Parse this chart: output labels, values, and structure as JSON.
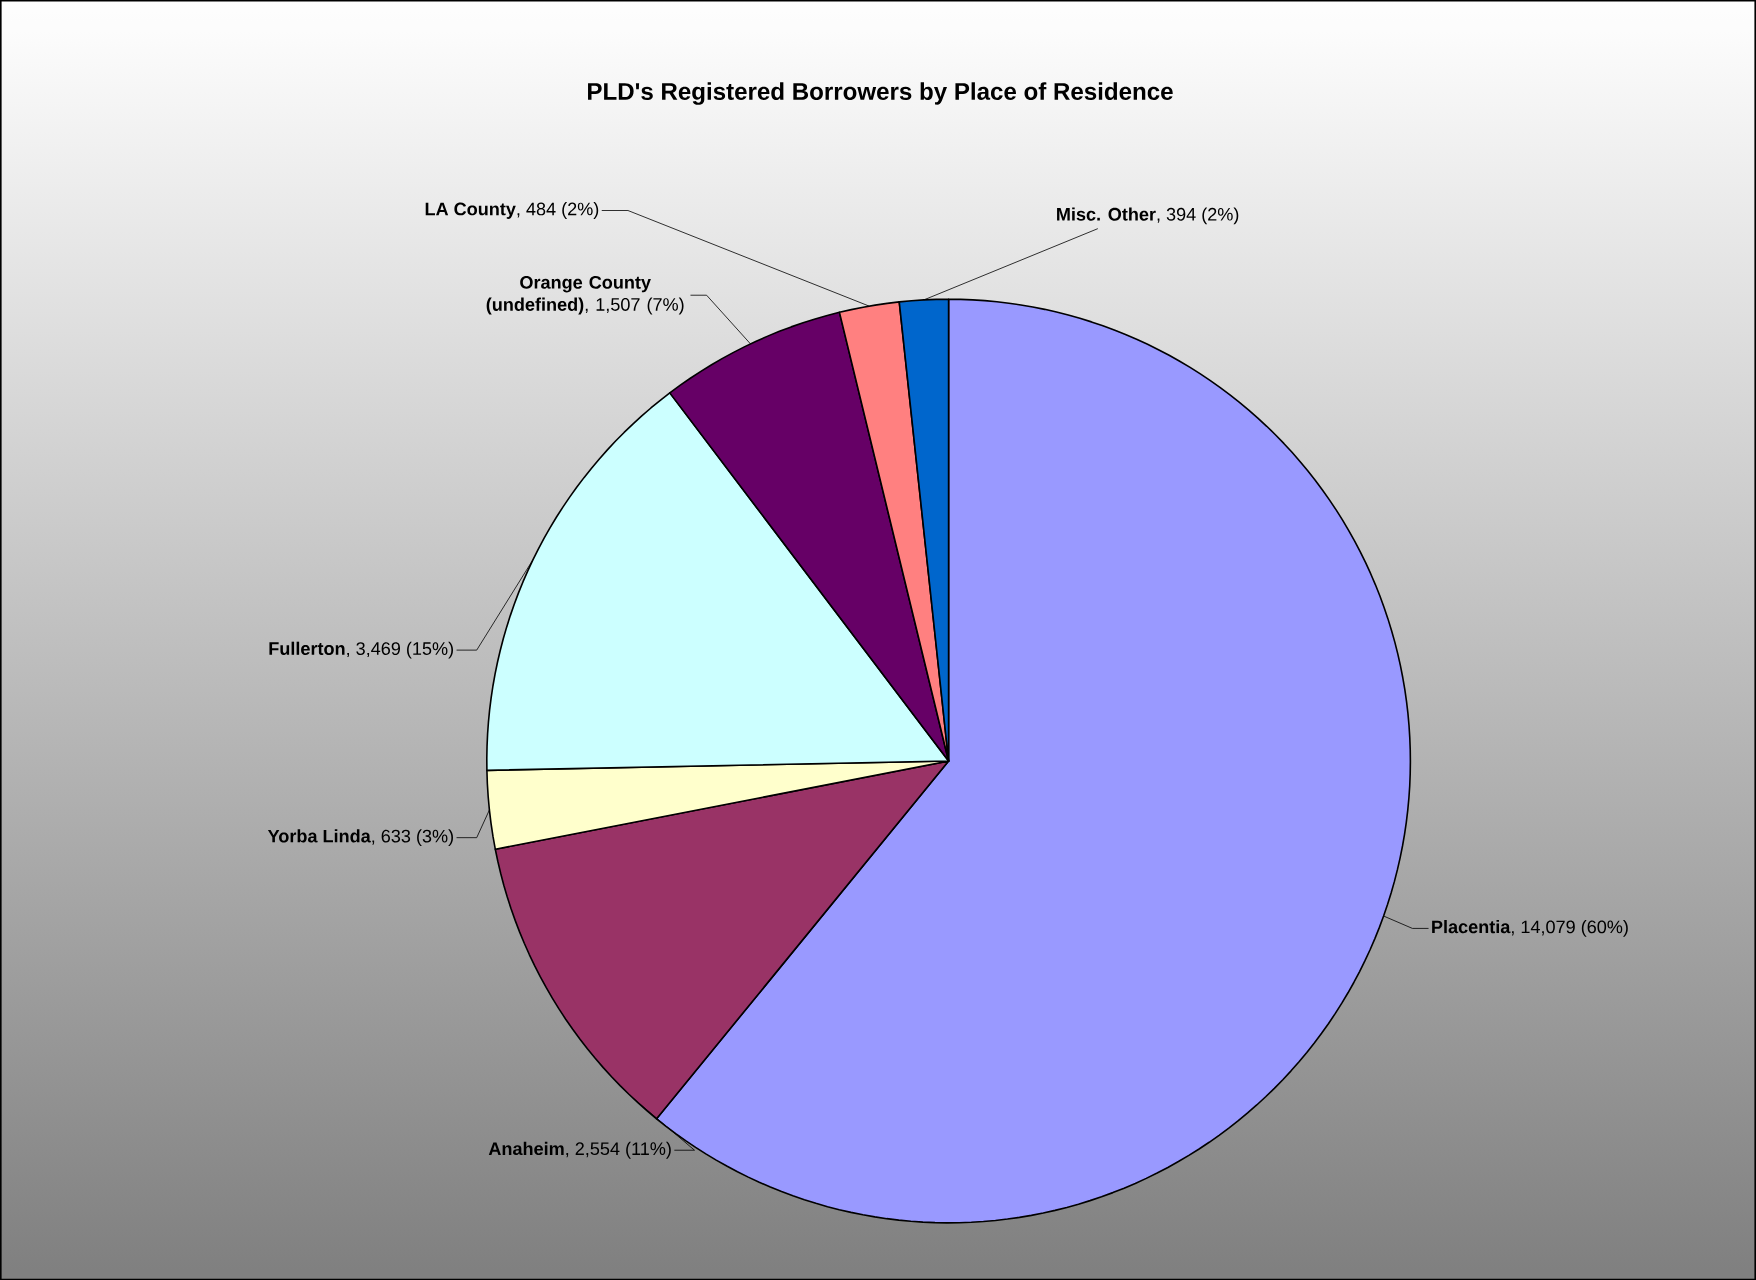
{
  "chart_data": {
    "type": "pie",
    "title": "PLD's Registered Borrowers by Place of Residence",
    "categories": [
      "Placentia",
      "Anaheim",
      "Yorba Linda",
      "Fullerton",
      "Orange County (undefined)",
      "LA County",
      "Misc. Other"
    ],
    "values": [
      14079,
      2554,
      633,
      3469,
      1507,
      484,
      394
    ],
    "value_labels": [
      ", 14,079 (60%)",
      ", 2,554 (11%)",
      ", 633 (3%)",
      ", 3,469 (15%)",
      ", 1,507 (7%)",
      ", 484 (2%)",
      ", 394 (2%)"
    ],
    "colors": [
      "#9999ff",
      "#993366",
      "#ffffcc",
      "#ccffff",
      "#660066",
      "#ff8080",
      "#0066cc"
    ]
  }
}
